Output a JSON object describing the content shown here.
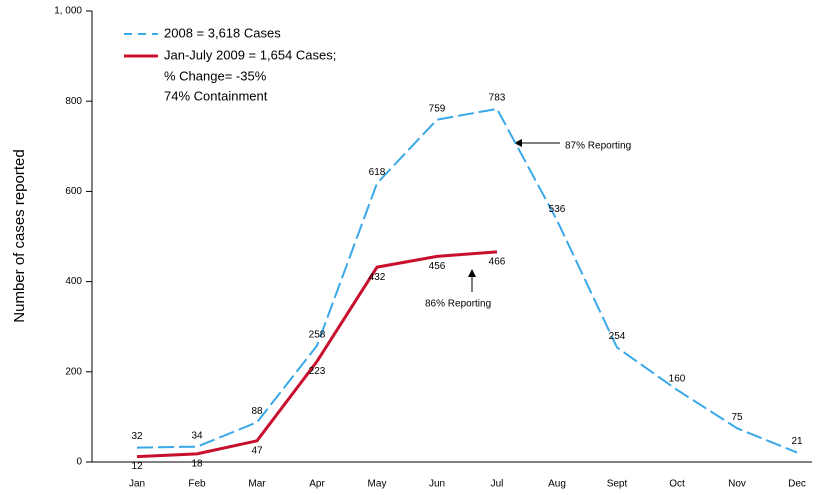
{
  "chart_data": {
    "type": "line",
    "y_label": "Number of cases reported",
    "categories": [
      "Jan",
      "Feb",
      "Mar",
      "Apr",
      "May",
      "Jun",
      "Jul",
      "Aug",
      "Sept",
      "Oct",
      "Nov",
      "Dec"
    ],
    "series": [
      {
        "name": "2008 = 3,618 Cases",
        "color": "#3aa8e8",
        "dashed": true,
        "values": [
          32,
          34,
          88,
          258,
          618,
          759,
          783,
          536,
          254,
          160,
          75,
          21
        ]
      },
      {
        "name": "Jan-July 2009 = 1,654 Cases;",
        "color": "#c8102e",
        "dashed": false,
        "values": [
          12,
          18,
          47,
          223,
          432,
          456,
          466,
          null,
          null,
          null,
          null,
          null
        ]
      }
    ],
    "legend_notes": [
      "% Change= -35%",
      "74% Containment"
    ],
    "annotations": [
      "87% Reporting",
      "86% Reporting"
    ],
    "ylim": [
      0,
      1000
    ],
    "yticks": [
      0,
      200,
      400,
      600,
      800,
      {
        "value": 1000,
        "label": "1, 000"
      }
    ],
    "grid": false
  }
}
